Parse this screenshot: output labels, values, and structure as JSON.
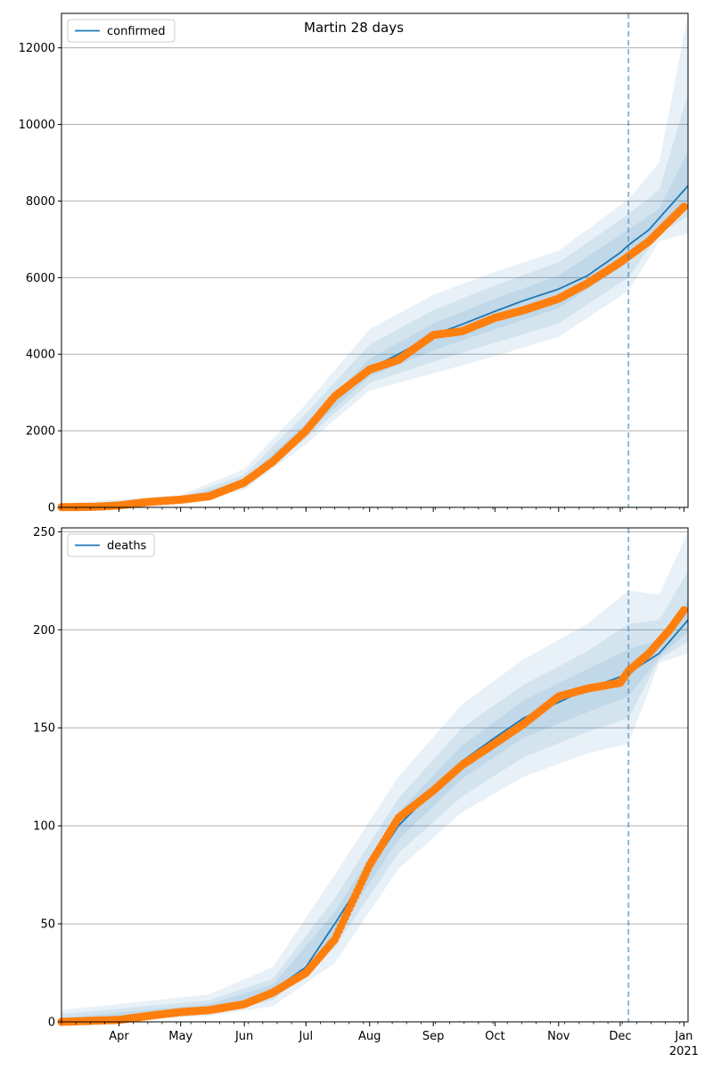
{
  "title": "Martin 28 days",
  "colors": {
    "model": "#1f77b4",
    "observed": "#ff7f0e",
    "band": "#1f77b4",
    "grid": "#b0b0b0",
    "cutoff": "#1f77b4"
  },
  "x_axis": {
    "start": "2020-03-04",
    "end": "2021-01-03",
    "cutoff_date": "2020-12-05",
    "month_ticks": [
      {
        "date": "2020-04-01",
        "label": "Apr"
      },
      {
        "date": "2020-05-01",
        "label": "May"
      },
      {
        "date": "2020-06-01",
        "label": "Jun"
      },
      {
        "date": "2020-07-01",
        "label": "Jul"
      },
      {
        "date": "2020-08-01",
        "label": "Aug"
      },
      {
        "date": "2020-09-01",
        "label": "Sep"
      },
      {
        "date": "2020-10-01",
        "label": "Oct"
      },
      {
        "date": "2020-11-01",
        "label": "Nov"
      },
      {
        "date": "2020-12-01",
        "label": "Dec"
      },
      {
        "date": "2021-01-01",
        "label": "Jan"
      }
    ],
    "year_label": "2021"
  },
  "chart_data": [
    {
      "type": "line",
      "legend": "confirmed",
      "legend_position": "top-left",
      "grid": "horizontal",
      "ylim": [
        0,
        12900
      ],
      "yticks": [
        0,
        2000,
        4000,
        6000,
        8000,
        10000,
        12000
      ],
      "model": [
        [
          "2020-03-04",
          10
        ],
        [
          "2020-04-01",
          40
        ],
        [
          "2020-05-01",
          190
        ],
        [
          "2020-05-20",
          380
        ],
        [
          "2020-06-01",
          640
        ],
        [
          "2020-06-15",
          1200
        ],
        [
          "2020-07-01",
          2050
        ],
        [
          "2020-07-15",
          2900
        ],
        [
          "2020-08-01",
          3620
        ],
        [
          "2020-08-15",
          4000
        ],
        [
          "2020-09-01",
          4500
        ],
        [
          "2020-09-15",
          4780
        ],
        [
          "2020-10-01",
          5120
        ],
        [
          "2020-10-15",
          5400
        ],
        [
          "2020-11-01",
          5700
        ],
        [
          "2020-11-15",
          6050
        ],
        [
          "2020-12-01",
          6650
        ],
        [
          "2020-12-05",
          6850
        ],
        [
          "2020-12-15",
          7250
        ],
        [
          "2021-01-03",
          8400
        ]
      ],
      "bands": [
        {
          "name": "outer",
          "lower": [
            [
              "2020-03-04",
              0
            ],
            [
              "2020-05-01",
              120
            ],
            [
              "2020-06-01",
              450
            ],
            [
              "2020-07-01",
              1650
            ],
            [
              "2020-08-01",
              3050
            ],
            [
              "2020-09-01",
              3500
            ],
            [
              "2020-10-01",
              3950
            ],
            [
              "2020-11-01",
              4450
            ],
            [
              "2020-12-05",
              5650
            ],
            [
              "2020-12-20",
              6950
            ],
            [
              "2021-01-03",
              7150
            ]
          ],
          "upper": [
            [
              "2020-03-04",
              100
            ],
            [
              "2020-05-01",
              320
            ],
            [
              "2020-06-01",
              1000
            ],
            [
              "2020-07-01",
              2700
            ],
            [
              "2020-08-01",
              4650
            ],
            [
              "2020-09-01",
              5550
            ],
            [
              "2020-10-01",
              6150
            ],
            [
              "2020-11-01",
              6700
            ],
            [
              "2020-12-05",
              8050
            ],
            [
              "2020-12-20",
              9000
            ],
            [
              "2021-01-03",
              12900
            ]
          ]
        },
        {
          "name": "middle",
          "lower": [
            [
              "2020-03-04",
              0
            ],
            [
              "2020-05-01",
              150
            ],
            [
              "2020-06-01",
              520
            ],
            [
              "2020-07-01",
              1800
            ],
            [
              "2020-08-01",
              3250
            ],
            [
              "2020-09-01",
              3800
            ],
            [
              "2020-10-01",
              4300
            ],
            [
              "2020-11-01",
              4800
            ],
            [
              "2020-12-05",
              6000
            ],
            [
              "2020-12-20",
              7150
            ],
            [
              "2021-01-03",
              7600
            ]
          ],
          "upper": [
            [
              "2020-03-04",
              60
            ],
            [
              "2020-05-01",
              270
            ],
            [
              "2020-06-01",
              850
            ],
            [
              "2020-07-01",
              2450
            ],
            [
              "2020-08-01",
              4250
            ],
            [
              "2020-09-01",
              5150
            ],
            [
              "2020-10-01",
              5800
            ],
            [
              "2020-11-01",
              6400
            ],
            [
              "2020-12-05",
              7650
            ],
            [
              "2020-12-20",
              8300
            ],
            [
              "2021-01-03",
              10800
            ]
          ]
        },
        {
          "name": "inner",
          "lower": [
            [
              "2020-03-04",
              0
            ],
            [
              "2020-05-01",
              170
            ],
            [
              "2020-06-01",
              580
            ],
            [
              "2020-07-01",
              1920
            ],
            [
              "2020-08-01",
              3420
            ],
            [
              "2020-09-01",
              4100
            ],
            [
              "2020-10-01",
              4650
            ],
            [
              "2020-11-01",
              5200
            ],
            [
              "2020-12-05",
              6400
            ],
            [
              "2020-12-20",
              7350
            ],
            [
              "2021-01-03",
              8000
            ]
          ],
          "upper": [
            [
              "2020-03-04",
              30
            ],
            [
              "2020-05-01",
              230
            ],
            [
              "2020-06-01",
              720
            ],
            [
              "2020-07-01",
              2200
            ],
            [
              "2020-08-01",
              3880
            ],
            [
              "2020-09-01",
              4800
            ],
            [
              "2020-10-01",
              5450
            ],
            [
              "2020-11-01",
              6050
            ],
            [
              "2020-12-05",
              7250
            ],
            [
              "2020-12-20",
              7800
            ],
            [
              "2021-01-03",
              9300
            ]
          ]
        }
      ],
      "observed": [
        [
          "2020-03-04",
          5
        ],
        [
          "2020-03-20",
          15
        ],
        [
          "2020-04-01",
          50
        ],
        [
          "2020-04-15",
          140
        ],
        [
          "2020-05-01",
          200
        ],
        [
          "2020-05-15",
          290
        ],
        [
          "2020-06-01",
          650
        ],
        [
          "2020-06-15",
          1200
        ],
        [
          "2020-07-01",
          2000
        ],
        [
          "2020-07-15",
          2900
        ],
        [
          "2020-08-01",
          3600
        ],
        [
          "2020-08-15",
          3850
        ],
        [
          "2020-09-01",
          4500
        ],
        [
          "2020-09-15",
          4600
        ],
        [
          "2020-10-01",
          4950
        ],
        [
          "2020-10-15",
          5150
        ],
        [
          "2020-11-01",
          5450
        ],
        [
          "2020-11-15",
          5850
        ],
        [
          "2020-12-01",
          6400
        ],
        [
          "2020-12-15",
          6950
        ],
        [
          "2021-01-01",
          7850
        ]
      ]
    },
    {
      "type": "line",
      "legend": "deaths",
      "legend_position": "top-left",
      "grid": "horizontal",
      "ylim": [
        0,
        252
      ],
      "yticks": [
        0,
        50,
        100,
        150,
        200,
        250
      ],
      "model": [
        [
          "2020-03-04",
          0
        ],
        [
          "2020-04-15",
          3
        ],
        [
          "2020-05-15",
          7
        ],
        [
          "2020-06-01",
          10
        ],
        [
          "2020-06-15",
          16
        ],
        [
          "2020-07-01",
          28
        ],
        [
          "2020-07-15",
          50
        ],
        [
          "2020-08-01",
          78
        ],
        [
          "2020-08-15",
          100
        ],
        [
          "2020-09-01",
          118
        ],
        [
          "2020-09-15",
          133
        ],
        [
          "2020-10-01",
          145
        ],
        [
          "2020-10-15",
          155
        ],
        [
          "2020-11-01",
          163
        ],
        [
          "2020-11-15",
          170
        ],
        [
          "2020-12-01",
          176
        ],
        [
          "2020-12-05",
          178
        ],
        [
          "2020-12-20",
          188
        ],
        [
          "2021-01-03",
          205
        ]
      ],
      "bands": [
        {
          "name": "outer",
          "lower": [
            [
              "2020-03-04",
              0
            ],
            [
              "2020-05-15",
              3
            ],
            [
              "2020-06-15",
              8
            ],
            [
              "2020-07-15",
              30
            ],
            [
              "2020-08-15",
              78
            ],
            [
              "2020-09-15",
              107
            ],
            [
              "2020-10-15",
              125
            ],
            [
              "2020-11-15",
              137
            ],
            [
              "2020-12-05",
              142
            ],
            [
              "2020-12-20",
              183
            ],
            [
              "2021-01-03",
              188
            ]
          ],
          "upper": [
            [
              "2020-03-04",
              6
            ],
            [
              "2020-05-15",
              14
            ],
            [
              "2020-06-15",
              28
            ],
            [
              "2020-07-15",
              75
            ],
            [
              "2020-08-15",
              125
            ],
            [
              "2020-09-15",
              162
            ],
            [
              "2020-10-15",
              185
            ],
            [
              "2020-11-15",
              203
            ],
            [
              "2020-12-05",
              220
            ],
            [
              "2020-12-20",
              218
            ],
            [
              "2021-01-03",
              250
            ]
          ]
        },
        {
          "name": "middle",
          "lower": [
            [
              "2020-03-04",
              0
            ],
            [
              "2020-05-15",
              4
            ],
            [
              "2020-06-15",
              11
            ],
            [
              "2020-07-15",
              38
            ],
            [
              "2020-08-15",
              86
            ],
            [
              "2020-09-15",
              115
            ],
            [
              "2020-10-15",
              135
            ],
            [
              "2020-11-15",
              148
            ],
            [
              "2020-12-05",
              155
            ],
            [
              "2020-12-20",
              185
            ],
            [
              "2021-01-03",
              194
            ]
          ],
          "upper": [
            [
              "2020-03-04",
              4
            ],
            [
              "2020-05-15",
              11
            ],
            [
              "2020-06-15",
              22
            ],
            [
              "2020-07-15",
              63
            ],
            [
              "2020-08-15",
              114
            ],
            [
              "2020-09-15",
              150
            ],
            [
              "2020-10-15",
              172
            ],
            [
              "2020-11-15",
              189
            ],
            [
              "2020-12-05",
              203
            ],
            [
              "2020-12-20",
              205
            ],
            [
              "2021-01-03",
              230
            ]
          ]
        },
        {
          "name": "inner",
          "lower": [
            [
              "2020-03-04",
              0
            ],
            [
              "2020-05-15",
              5
            ],
            [
              "2020-06-15",
              13
            ],
            [
              "2020-07-15",
              44
            ],
            [
              "2020-08-15",
              93
            ],
            [
              "2020-09-15",
              124
            ],
            [
              "2020-10-15",
              145
            ],
            [
              "2020-11-15",
              158
            ],
            [
              "2020-12-05",
              166
            ],
            [
              "2020-12-20",
              186
            ],
            [
              "2021-01-03",
              199
            ]
          ],
          "upper": [
            [
              "2020-03-04",
              2
            ],
            [
              "2020-05-15",
              9
            ],
            [
              "2020-06-15",
              19
            ],
            [
              "2020-07-15",
              56
            ],
            [
              "2020-08-15",
              107
            ],
            [
              "2020-09-15",
              141
            ],
            [
              "2020-10-15",
              164
            ],
            [
              "2020-11-15",
              180
            ],
            [
              "2020-12-05",
              190
            ],
            [
              "2020-12-20",
              195
            ],
            [
              "2021-01-03",
              215
            ]
          ]
        }
      ],
      "observed": [
        [
          "2020-03-04",
          0
        ],
        [
          "2020-04-01",
          1
        ],
        [
          "2020-04-15",
          3
        ],
        [
          "2020-05-01",
          5
        ],
        [
          "2020-05-15",
          6
        ],
        [
          "2020-06-01",
          9
        ],
        [
          "2020-06-15",
          15
        ],
        [
          "2020-07-01",
          25
        ],
        [
          "2020-07-15",
          42
        ],
        [
          "2020-08-01",
          80
        ],
        [
          "2020-08-15",
          104
        ],
        [
          "2020-09-01",
          118
        ],
        [
          "2020-09-15",
          131
        ],
        [
          "2020-10-01",
          142
        ],
        [
          "2020-10-15",
          152
        ],
        [
          "2020-11-01",
          166
        ],
        [
          "2020-11-15",
          170
        ],
        [
          "2020-12-01",
          173
        ],
        [
          "2020-12-05",
          179
        ],
        [
          "2020-12-15",
          188
        ],
        [
          "2020-12-25",
          200
        ],
        [
          "2021-01-01",
          210
        ]
      ]
    }
  ]
}
